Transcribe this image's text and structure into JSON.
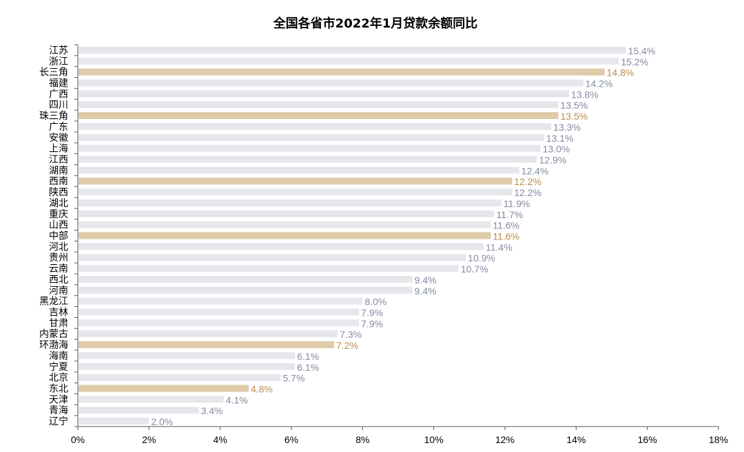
{
  "chart_data": {
    "type": "bar",
    "orientation": "horizontal",
    "title": "全国各省市2022年1月贷款余额同比",
    "xlabel": "",
    "ylabel": "",
    "xlim": [
      0,
      18
    ],
    "x_ticks": [
      "0%",
      "2%",
      "4%",
      "6%",
      "8%",
      "10%",
      "12%",
      "14%",
      "16%",
      "18%"
    ],
    "grid": false,
    "legend": "none",
    "colors": {
      "normal": "#e6e7ec",
      "highlight": "#dfcaa9",
      "normal_label": "#838aa0",
      "highlight_label": "#b98b4c",
      "axis": "#555555"
    },
    "categories": [
      "江苏",
      "浙江",
      "长三角",
      "福建",
      "广西",
      "四川",
      "珠三角",
      "广东",
      "安徽",
      "上海",
      "江西",
      "湖南",
      "西南",
      "陕西",
      "湖北",
      "重庆",
      "山西",
      "中部",
      "河北",
      "贵州",
      "云南",
      "西北",
      "河南",
      "黑龙江",
      "吉林",
      "甘肃",
      "内蒙古",
      "环渤海",
      "海南",
      "宁夏",
      "北京",
      "东北",
      "天津",
      "青海",
      "辽宁"
    ],
    "values": [
      15.4,
      15.2,
      14.8,
      14.2,
      13.8,
      13.5,
      13.5,
      13.3,
      13.1,
      13.0,
      12.9,
      12.4,
      12.2,
      12.2,
      11.9,
      11.7,
      11.6,
      11.6,
      11.4,
      10.9,
      10.7,
      9.4,
      9.4,
      8.0,
      7.9,
      7.9,
      7.3,
      7.2,
      6.1,
      6.1,
      5.7,
      4.8,
      4.1,
      3.4,
      2.0
    ],
    "labels": [
      "15.4%",
      "15.2%",
      "14.8%",
      "14.2%",
      "13.8%",
      "13.5%",
      "13.5%",
      "13.3%",
      "13.1%",
      "13.0%",
      "12.9%",
      "12.4%",
      "12.2%",
      "12.2%",
      "11.9%",
      "11.7%",
      "11.6%",
      "11.6%",
      "11.4%",
      "10.9%",
      "10.7%",
      "9.4%",
      "9.4%",
      "8.0%",
      "7.9%",
      "7.9%",
      "7.3%",
      "7.2%",
      "6.1%",
      "6.1%",
      "5.7%",
      "4.8%",
      "4.1%",
      "3.4%",
      "2.0%"
    ],
    "highlighted": [
      "长三角",
      "珠三角",
      "西南",
      "中部",
      "环渤海",
      "东北"
    ]
  }
}
